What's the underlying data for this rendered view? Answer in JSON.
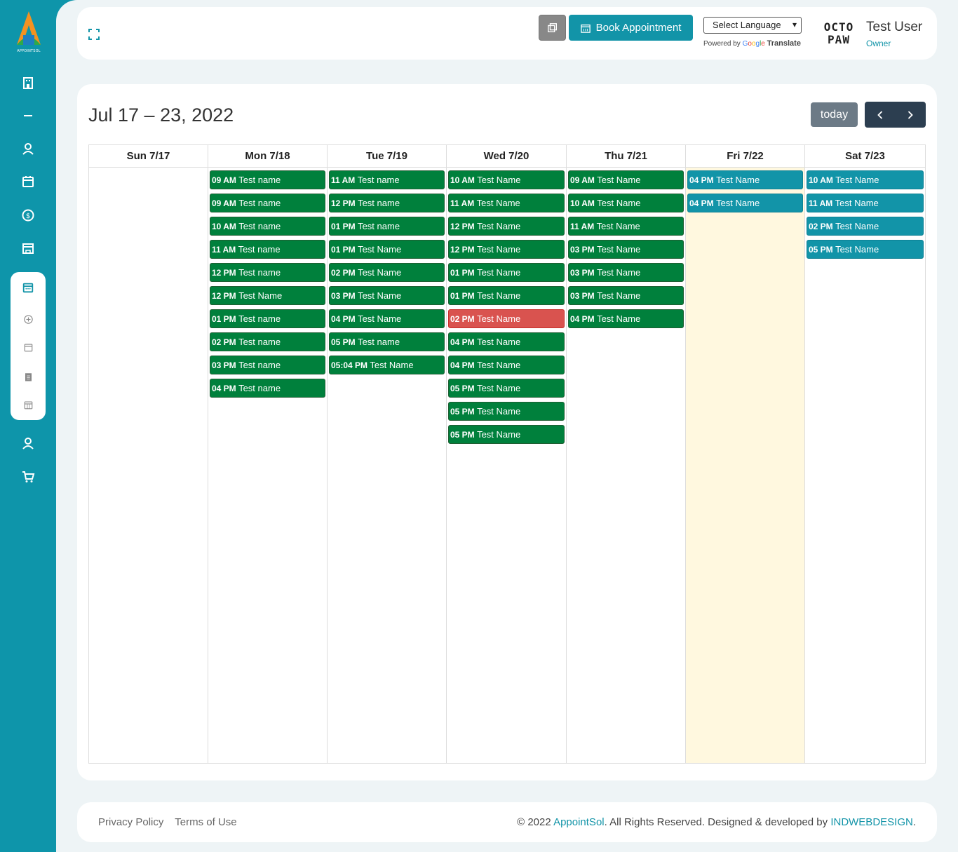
{
  "sidebar": {
    "logo_text": "APPOINTSOL",
    "icons": [
      "building-icon",
      "minus-icon",
      "user-icon",
      "calendar-icon",
      "dollar-icon",
      "store-icon",
      "user-icon",
      "cart-icon"
    ],
    "submenu_icons": [
      "calendar-icon",
      "plus-circle-icon",
      "calendar-icon",
      "document-icon",
      "calendar-grid-icon"
    ]
  },
  "topbar": {
    "book_label": "Book Appointment",
    "language_placeholder": "Select Language",
    "powered_by": "Powered by",
    "google_letters": [
      "G",
      "o",
      "o",
      "g",
      "l",
      "e"
    ],
    "translate": "Translate",
    "brand_line1": "OCTO",
    "brand_line2": "PAW",
    "user_name": "Test User",
    "user_role": "Owner"
  },
  "calendar": {
    "title": "Jul 17 – 23, 2022",
    "today_label": "today",
    "prev_label": "‹",
    "next_label": "›",
    "days": [
      {
        "header": "Sun 7/17",
        "events": []
      },
      {
        "header": "Mon 7/18",
        "events": [
          {
            "time": "09 AM",
            "name": "Test name",
            "color": "green"
          },
          {
            "time": "09 AM",
            "name": "Test name",
            "color": "green"
          },
          {
            "time": "10 AM",
            "name": "Test name",
            "color": "green"
          },
          {
            "time": "11 AM",
            "name": "Test name",
            "color": "green"
          },
          {
            "time": "12 PM",
            "name": "Test name",
            "color": "green"
          },
          {
            "time": "12 PM",
            "name": "Test Name",
            "color": "green"
          },
          {
            "time": "01 PM",
            "name": "Test name",
            "color": "green"
          },
          {
            "time": "02 PM",
            "name": "Test name",
            "color": "green"
          },
          {
            "time": "03 PM",
            "name": "Test name",
            "color": "green"
          },
          {
            "time": "04 PM",
            "name": "Test name",
            "color": "green"
          }
        ]
      },
      {
        "header": "Tue 7/19",
        "events": [
          {
            "time": "11 AM",
            "name": "Test name",
            "color": "green"
          },
          {
            "time": "12 PM",
            "name": "Test name",
            "color": "green"
          },
          {
            "time": "01 PM",
            "name": "Test name",
            "color": "green"
          },
          {
            "time": "01 PM",
            "name": "Test Name",
            "color": "green"
          },
          {
            "time": "02 PM",
            "name": "Test Name",
            "color": "green"
          },
          {
            "time": "03 PM",
            "name": "Test Name",
            "color": "green"
          },
          {
            "time": "04 PM",
            "name": "Test Name",
            "color": "green"
          },
          {
            "time": "05 PM",
            "name": "Test name",
            "color": "green"
          },
          {
            "time": "05:04 PM",
            "name": "Test Name",
            "color": "green"
          }
        ]
      },
      {
        "header": "Wed 7/20",
        "events": [
          {
            "time": "10 AM",
            "name": "Test Name",
            "color": "green"
          },
          {
            "time": "11 AM",
            "name": "Test Name",
            "color": "green"
          },
          {
            "time": "12 PM",
            "name": "Test Name",
            "color": "green"
          },
          {
            "time": "12 PM",
            "name": "Test Name",
            "color": "green"
          },
          {
            "time": "01 PM",
            "name": "Test Name",
            "color": "green"
          },
          {
            "time": "01 PM",
            "name": "Test Name",
            "color": "green"
          },
          {
            "time": "02 PM",
            "name": "Test Name",
            "color": "red"
          },
          {
            "time": "04 PM",
            "name": "Test Name",
            "color": "green"
          },
          {
            "time": "04 PM",
            "name": "Test Name",
            "color": "green"
          },
          {
            "time": "05 PM",
            "name": "Test Name",
            "color": "green"
          },
          {
            "time": "05 PM",
            "name": "Test Name",
            "color": "green"
          },
          {
            "time": "05 PM",
            "name": "Test Name",
            "color": "green"
          }
        ]
      },
      {
        "header": "Thu 7/21",
        "events": [
          {
            "time": "09 AM",
            "name": "Test Name",
            "color": "green"
          },
          {
            "time": "10 AM",
            "name": "Test Name",
            "color": "green"
          },
          {
            "time": "11 AM",
            "name": "Test Name",
            "color": "green"
          },
          {
            "time": "03 PM",
            "name": "Test Name",
            "color": "green"
          },
          {
            "time": "03 PM",
            "name": "Test Name",
            "color": "green"
          },
          {
            "time": "03 PM",
            "name": "Test Name",
            "color": "green"
          },
          {
            "time": "04 PM",
            "name": "Test Name",
            "color": "green"
          }
        ]
      },
      {
        "header": "Fri 7/22",
        "today": true,
        "events": [
          {
            "time": "04 PM",
            "name": "Test Name",
            "color": "teal"
          },
          {
            "time": "04 PM",
            "name": "Test Name",
            "color": "teal"
          }
        ]
      },
      {
        "header": "Sat 7/23",
        "events": [
          {
            "time": "10 AM",
            "name": "Test Name",
            "color": "teal"
          },
          {
            "time": "11 AM",
            "name": "Test Name",
            "color": "teal"
          },
          {
            "time": "02 PM",
            "name": "Test Name",
            "color": "teal"
          },
          {
            "time": "05 PM",
            "name": "Test Name",
            "color": "teal"
          }
        ]
      }
    ]
  },
  "footer": {
    "privacy": "Privacy Policy",
    "terms": "Terms of Use",
    "copy_prefix": "© 2022 ",
    "brand": "AppointSol",
    "copy_mid": ". All Rights Reserved. Designed & developed by ",
    "developer": "INDWEBDESIGN",
    "copy_suffix": "."
  },
  "colors": {
    "primary": "#0e95aa",
    "event_green": "#00803c",
    "event_red": "#d9534f",
    "event_teal": "#1294a8",
    "today_bg": "#fff8df"
  }
}
